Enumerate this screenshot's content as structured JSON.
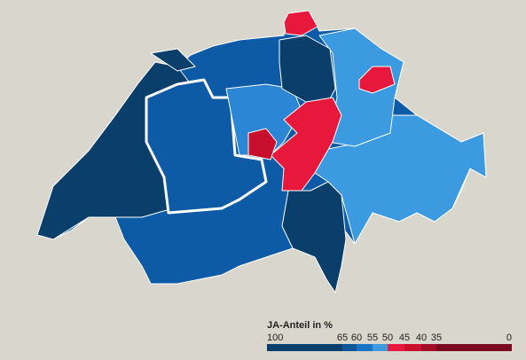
{
  "legend": {
    "title": "JA-Anteil in %",
    "ticks": [
      100,
      65,
      60,
      55,
      50,
      45,
      40,
      35,
      0
    ],
    "colors": [
      "#0b3f6b",
      "#0e5599",
      "#1a72c4",
      "#3b9ae0",
      "#e8173c",
      "#c8102e",
      "#a30c28",
      "#7a0a1e"
    ]
  }
}
